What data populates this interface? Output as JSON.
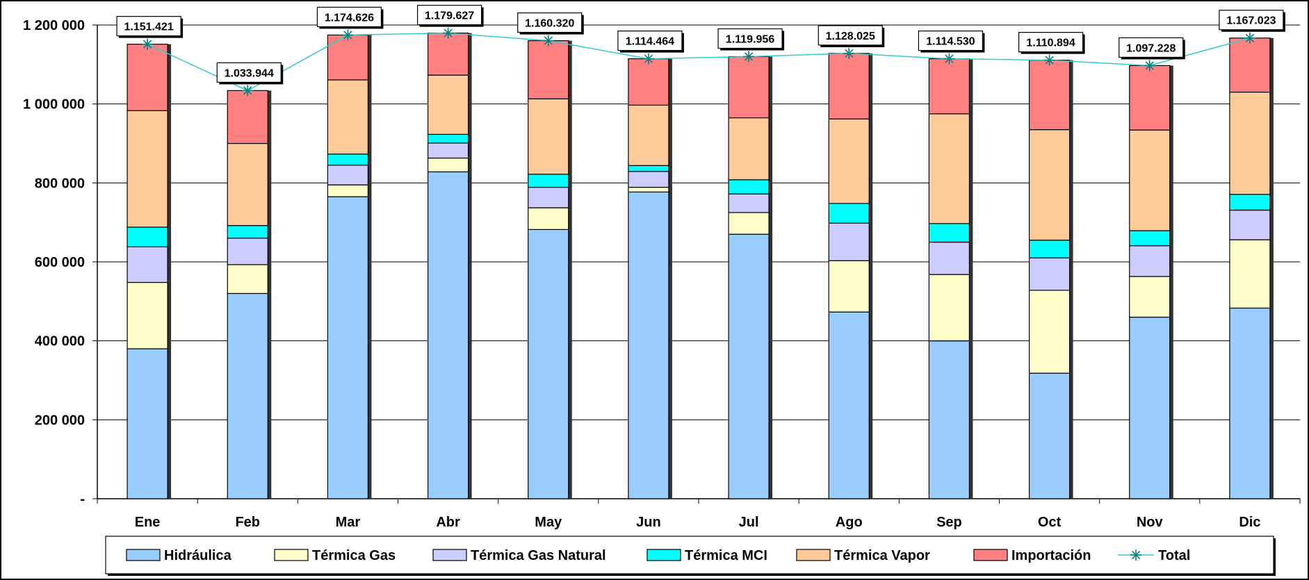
{
  "chart_data": {
    "type": "bar",
    "stacked": true,
    "categories": [
      "Ene",
      "Feb",
      "Mar",
      "Abr",
      "May",
      "Jun",
      "Jul",
      "Ago",
      "Sep",
      "Oct",
      "Nov",
      "Dic"
    ],
    "ylim": [
      0,
      1200000
    ],
    "yticks": [
      0,
      200000,
      400000,
      600000,
      800000,
      1000000,
      1200000
    ],
    "ytick_labels": [
      "-",
      "200 000",
      "400 000",
      "600 000",
      "800 000",
      "1 000 000",
      "1 200 000"
    ],
    "grid": true,
    "legend_position": "bottom",
    "series": [
      {
        "name": "Hidráulica",
        "type": "bar",
        "color": "#99ccff",
        "values": [
          380000,
          520000,
          765000,
          828000,
          682000,
          777000,
          670000,
          473000,
          400000,
          318000,
          460000,
          483000
        ]
      },
      {
        "name": "Térmica Gas",
        "type": "bar",
        "color": "#ffffcc",
        "values": [
          168000,
          73000,
          30000,
          35000,
          55000,
          12000,
          55000,
          130000,
          168000,
          210000,
          103000,
          173000
        ]
      },
      {
        "name": "Térmica Gas Natural",
        "type": "bar",
        "color": "#ccccff",
        "values": [
          90000,
          67000,
          50000,
          38000,
          52000,
          40000,
          47000,
          95000,
          82000,
          82000,
          78000,
          75000
        ]
      },
      {
        "name": "Térmica MCI",
        "type": "bar",
        "color": "#00ffff",
        "values": [
          50000,
          32000,
          28000,
          22000,
          33000,
          15000,
          36000,
          50000,
          47000,
          45000,
          38000,
          40000
        ]
      },
      {
        "name": "Térmica Vapor",
        "type": "bar",
        "color": "#ffcc99",
        "values": [
          295000,
          208000,
          188000,
          150000,
          191000,
          153000,
          157000,
          214000,
          278000,
          280000,
          255000,
          259000
        ]
      },
      {
        "name": "Importación",
        "type": "bar",
        "color": "#ff8080",
        "values": [
          168421,
          133944,
          113626,
          106627,
          147320,
          117464,
          154956,
          166025,
          139530,
          175894,
          163228,
          137023
        ]
      },
      {
        "name": "Total",
        "type": "line",
        "color": "#33cccc",
        "marker_color": "#008080",
        "values": [
          1151421,
          1033944,
          1174626,
          1179627,
          1160320,
          1114464,
          1119956,
          1128025,
          1114530,
          1110894,
          1097228,
          1167023
        ],
        "labels": [
          "1.151.421",
          "1.033.944",
          "1.174.626",
          "1.179.627",
          "1.160.320",
          "1.114.464",
          "1.119.956",
          "1.128.025",
          "1.114.530",
          "1.110.894",
          "1.097.228",
          "1.167.023"
        ]
      }
    ]
  }
}
